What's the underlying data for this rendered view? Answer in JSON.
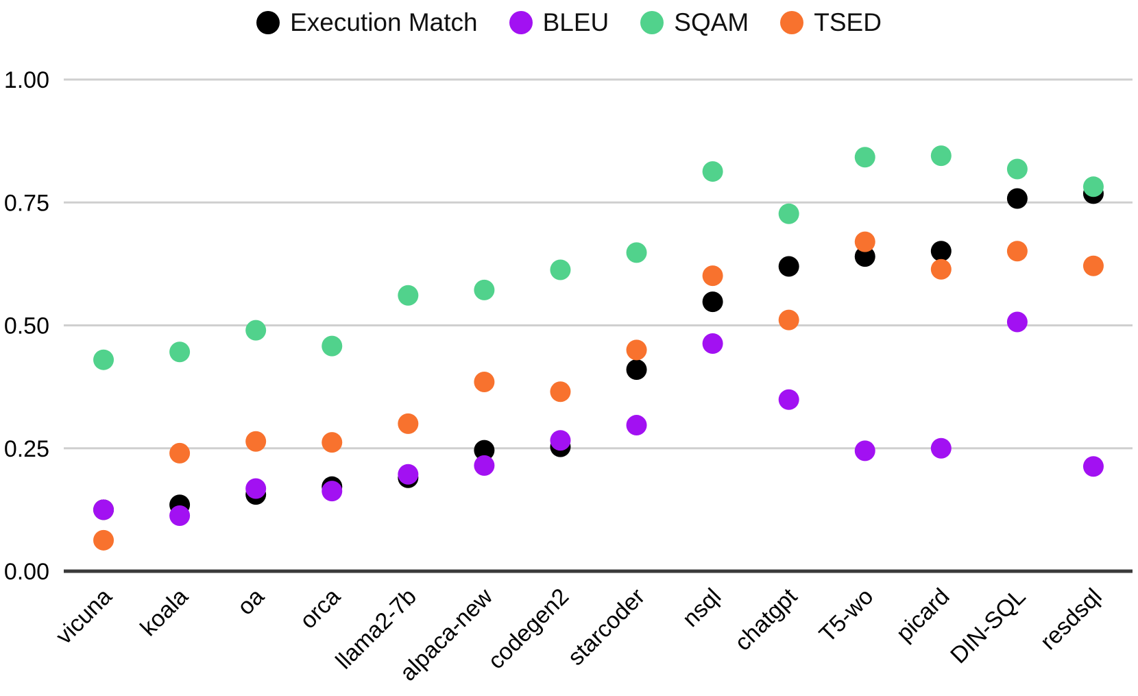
{
  "legend": [
    {
      "label": "Execution Match",
      "color": "#000000"
    },
    {
      "label": "BLEU",
      "color": "#A211F2"
    },
    {
      "label": "SQAM",
      "color": "#51D28C"
    },
    {
      "label": "TSED",
      "color": "#F8722E"
    }
  ],
  "chart_data": {
    "type": "scatter",
    "title": "",
    "xlabel": "",
    "ylabel": "",
    "categories": [
      "vicuna",
      "koala",
      "oa",
      "orca",
      "llama2-7b",
      "alpaca-new",
      "codegen2",
      "starcoder",
      "nsql",
      "chatgpt",
      "T5-wo",
      "picard",
      "DIN-SQL",
      "resdsql"
    ],
    "series": [
      {
        "name": "Execution Match",
        "color": "#000000",
        "values": [
          0.125,
          0.135,
          0.156,
          0.172,
          0.19,
          0.246,
          0.253,
          0.41,
          0.548,
          0.62,
          0.64,
          0.651,
          0.758,
          0.768
        ]
      },
      {
        "name": "BLEU",
        "color": "#A211F2",
        "values": [
          0.125,
          0.113,
          0.168,
          0.163,
          0.197,
          0.215,
          0.266,
          0.297,
          0.463,
          0.349,
          0.245,
          0.25,
          0.507,
          0.213
        ]
      },
      {
        "name": "SQAM",
        "color": "#51D28C",
        "values": [
          0.43,
          0.446,
          0.49,
          0.458,
          0.561,
          0.572,
          0.613,
          0.648,
          0.813,
          0.727,
          0.842,
          0.845,
          0.818,
          0.782
        ]
      },
      {
        "name": "TSED",
        "color": "#F8722E",
        "values": [
          0.063,
          0.24,
          0.264,
          0.262,
          0.3,
          0.385,
          0.365,
          0.45,
          0.601,
          0.511,
          0.67,
          0.614,
          0.651,
          0.621
        ]
      }
    ],
    "ylim": [
      0,
      1
    ],
    "ytick_labels": [
      "1.00",
      "0.75",
      "0.50",
      "0.25",
      "0.00"
    ],
    "ytick_values": [
      1.0,
      0.75,
      0.5,
      0.25,
      0.0
    ],
    "grid": "horizontal",
    "gridline_color": "#cfcfcf",
    "axis_line_color": "#3a3a3a",
    "tick_label_color": "#000000",
    "legend_position": "top-center",
    "marker": "circle"
  }
}
